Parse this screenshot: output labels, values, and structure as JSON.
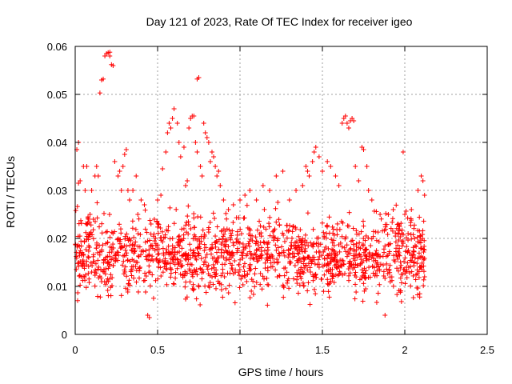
{
  "chart_data": {
    "type": "scatter",
    "title": "Day 121 of 2023, Rate Of TEC Index for receiver igeo",
    "xlabel": "GPS time / hours",
    "ylabel": "ROTI / TECUs",
    "xlim": [
      0,
      2.5
    ],
    "ylim": [
      0,
      0.06
    ],
    "xticks": [
      0,
      0.5,
      1,
      1.5,
      2,
      2.5
    ],
    "xtick_labels": [
      "0",
      "0.5",
      "1",
      "1.5",
      "2",
      "2.5"
    ],
    "yticks": [
      0,
      0.01,
      0.02,
      0.03,
      0.04,
      0.05,
      0.06
    ],
    "ytick_labels": [
      "0",
      "0.01",
      "0.02",
      "0.03",
      "0.04",
      "0.05",
      "0.06"
    ],
    "grid": true,
    "marker": "+",
    "color": "#ff0000",
    "series": [
      {
        "points": [
          [
            0.01,
            0.0385
          ],
          [
            0.02,
            0.04
          ],
          [
            0.02,
            0.0315
          ],
          [
            0.03,
            0.032
          ],
          [
            0.05,
            0.035
          ],
          [
            0.06,
            0.03
          ],
          [
            0.07,
            0.035
          ],
          [
            0.08,
            0.024
          ],
          [
            0.09,
            0.025
          ],
          [
            0.1,
            0.03
          ],
          [
            0.11,
            0.024
          ],
          [
            0.12,
            0.033
          ],
          [
            0.13,
            0.035
          ],
          [
            0.14,
            0.033
          ],
          [
            0.15,
            0.0503
          ],
          [
            0.16,
            0.053
          ],
          [
            0.17,
            0.0532
          ],
          [
            0.18,
            0.058
          ],
          [
            0.19,
            0.0585
          ],
          [
            0.2,
            0.0587
          ],
          [
            0.21,
            0.0588
          ],
          [
            0.21,
            0.058
          ],
          [
            0.22,
            0.0562
          ],
          [
            0.23,
            0.056
          ],
          [
            0.24,
            0.036
          ],
          [
            0.26,
            0.033
          ],
          [
            0.27,
            0.034
          ],
          [
            0.28,
            0.03
          ],
          [
            0.29,
            0.035
          ],
          [
            0.3,
            0.0375
          ],
          [
            0.31,
            0.0385
          ],
          [
            0.32,
            0.03
          ],
          [
            0.33,
            0.028
          ],
          [
            0.35,
            0.03
          ],
          [
            0.37,
            0.033
          ],
          [
            0.38,
            0.025
          ],
          [
            0.4,
            0.028
          ],
          [
            0.42,
            0.027
          ],
          [
            0.44,
            0.004
          ],
          [
            0.45,
            0.0035
          ],
          [
            0.46,
            0.023
          ],
          [
            0.48,
            0.024
          ],
          [
            0.5,
            0.028
          ],
          [
            0.52,
            0.029
          ],
          [
            0.53,
            0.0345
          ],
          [
            0.55,
            0.038
          ],
          [
            0.56,
            0.042
          ],
          [
            0.57,
            0.044
          ],
          [
            0.58,
            0.043
          ],
          [
            0.59,
            0.045
          ],
          [
            0.6,
            0.047
          ],
          [
            0.62,
            0.044
          ],
          [
            0.63,
            0.04
          ],
          [
            0.64,
            0.037
          ],
          [
            0.66,
            0.039
          ],
          [
            0.67,
            0.031
          ],
          [
            0.68,
            0.032
          ],
          [
            0.69,
            0.043
          ],
          [
            0.7,
            0.045
          ],
          [
            0.71,
            0.0455
          ],
          [
            0.72,
            0.0455
          ],
          [
            0.73,
            0.04
          ],
          [
            0.74,
            0.038
          ],
          [
            0.74,
            0.0532
          ],
          [
            0.75,
            0.0535
          ],
          [
            0.76,
            0.035
          ],
          [
            0.77,
            0.033
          ],
          [
            0.78,
            0.044
          ],
          [
            0.79,
            0.042
          ],
          [
            0.8,
            0.041
          ],
          [
            0.81,
            0.04
          ],
          [
            0.82,
            0.036
          ],
          [
            0.83,
            0.038
          ],
          [
            0.84,
            0.037
          ],
          [
            0.85,
            0.035
          ],
          [
            0.86,
            0.033
          ],
          [
            0.87,
            0.034
          ],
          [
            0.88,
            0.031
          ],
          [
            0.9,
            0.028
          ],
          [
            0.93,
            0.026
          ],
          [
            0.96,
            0.027
          ],
          [
            1.0,
            0.028
          ],
          [
            1.03,
            0.029
          ],
          [
            1.06,
            0.03
          ],
          [
            1.1,
            0.028
          ],
          [
            1.14,
            0.031
          ],
          [
            1.18,
            0.03
          ],
          [
            1.22,
            0.033
          ],
          [
            1.26,
            0.034
          ],
          [
            1.3,
            0.028
          ],
          [
            1.34,
            0.03
          ],
          [
            1.38,
            0.031
          ],
          [
            1.4,
            0.035
          ],
          [
            1.41,
            0.034
          ],
          [
            1.42,
            0.033
          ],
          [
            1.44,
            0.036
          ],
          [
            1.45,
            0.038
          ],
          [
            1.46,
            0.039
          ],
          [
            1.48,
            0.037
          ],
          [
            1.5,
            0.034
          ],
          [
            1.53,
            0.036
          ],
          [
            1.55,
            0.035
          ],
          [
            1.58,
            0.033
          ],
          [
            1.6,
            0.031
          ],
          [
            1.62,
            0.044
          ],
          [
            1.63,
            0.045
          ],
          [
            1.64,
            0.0455
          ],
          [
            1.65,
            0.044
          ],
          [
            1.66,
            0.043
          ],
          [
            1.67,
            0.0445
          ],
          [
            1.68,
            0.045
          ],
          [
            1.69,
            0.0445
          ],
          [
            1.7,
            0.035
          ],
          [
            1.72,
            0.032
          ],
          [
            1.74,
            0.039
          ],
          [
            1.75,
            0.0385
          ],
          [
            1.77,
            0.035
          ],
          [
            1.78,
            0.03
          ],
          [
            1.8,
            0.028
          ],
          [
            1.85,
            0.025
          ],
          [
            1.88,
            0.004
          ],
          [
            1.9,
            0.025
          ],
          [
            1.93,
            0.026
          ],
          [
            1.96,
            0.023
          ],
          [
            1.99,
            0.038
          ],
          [
            2.0,
            0.025
          ],
          [
            2.02,
            0.021
          ],
          [
            2.04,
            0.026
          ],
          [
            2.06,
            0.02
          ],
          [
            2.08,
            0.03
          ],
          [
            2.1,
            0.033
          ],
          [
            2.11,
            0.032
          ],
          [
            2.12,
            0.029
          ],
          [
            2.12,
            0.012
          ],
          [
            2.11,
            0.016
          ],
          [
            2.1,
            0.018
          ]
        ]
      }
    ],
    "dense_band": {
      "x_range": [
        0.0,
        2.12
      ],
      "y_center": 0.0165,
      "y_spread": 0.0055,
      "count": 1500,
      "seed": 121
    }
  }
}
